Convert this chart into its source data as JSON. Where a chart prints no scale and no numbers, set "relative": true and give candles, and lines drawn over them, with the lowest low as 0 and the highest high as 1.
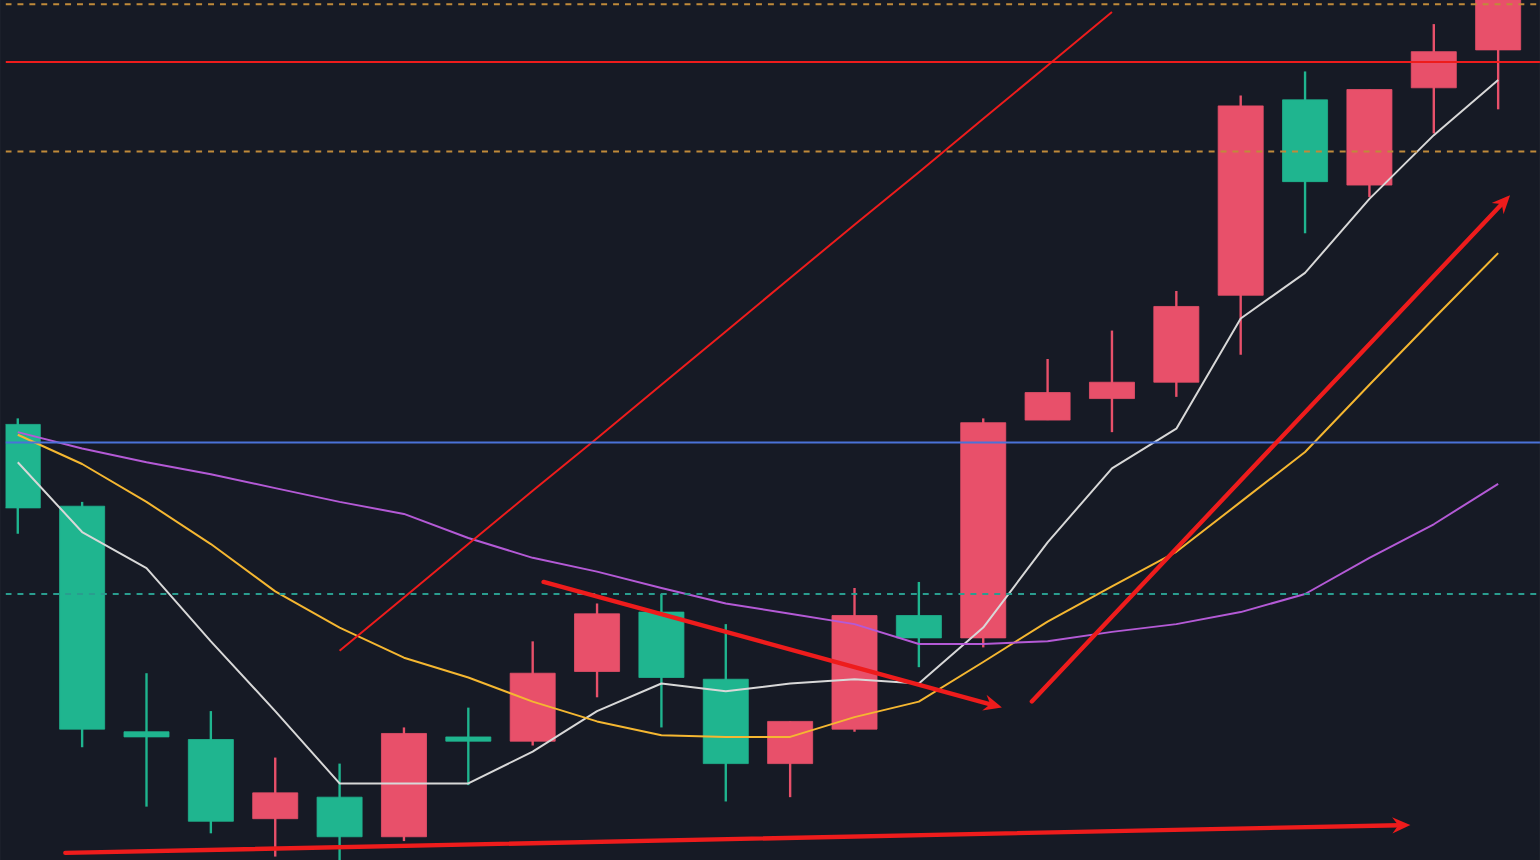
{
  "chart_data": {
    "type": "candlestick",
    "relative": true,
    "categories": [
      null,
      null,
      null,
      null,
      null,
      null,
      null,
      null,
      null,
      null,
      null,
      null,
      null,
      null,
      null,
      null,
      null,
      null,
      null,
      null,
      null,
      null,
      null,
      null
    ],
    "ohlc": [
      [
        0.507,
        0.514,
        0.38,
        0.41
      ],
      [
        0.412,
        0.417,
        0.132,
        0.153
      ],
      [
        0.15,
        0.218,
        0.063,
        0.144
      ],
      [
        0.141,
        0.174,
        0.032,
        0.046
      ],
      [
        0.049,
        0.12,
        0.005,
        0.079
      ],
      [
        0.074,
        0.113,
        0,
        0.028
      ],
      [
        0.028,
        0.155,
        0.023,
        0.148
      ],
      [
        0.144,
        0.178,
        0.088,
        0.139
      ],
      [
        0.139,
        0.255,
        0.134,
        0.218
      ],
      [
        0.22,
        0.299,
        0.19,
        0.287
      ],
      [
        0.289,
        0.31,
        0.155,
        0.213
      ],
      [
        0.211,
        0.275,
        0.069,
        0.113
      ],
      [
        0.113,
        0.162,
        0.074,
        0.162
      ],
      [
        0.153,
        0.317,
        0.15,
        0.285
      ],
      [
        0.285,
        0.324,
        0.225,
        0.259
      ],
      [
        0.259,
        0.514,
        0.248,
        0.509
      ],
      [
        0.512,
        0.583,
        0.512,
        0.544
      ],
      [
        0.537,
        0.616,
        0.498,
        0.556
      ],
      [
        0.556,
        0.662,
        0.539,
        0.644
      ],
      [
        0.657,
        0.889,
        0.588,
        0.877
      ],
      [
        0.884,
        0.917,
        0.729,
        0.789
      ],
      [
        0.785,
        0.896,
        0.771,
        0.896
      ],
      [
        0.898,
        0.972,
        0.845,
        0.94
      ],
      [
        0.942,
        1,
        0.873,
        1
      ]
    ],
    "colors": [
      "#1fb58f",
      "#1fb58f",
      "#1fb58f",
      "#1fb58f",
      "#e8506a",
      "#1fb58f",
      "#e8506a",
      "#1fb58f",
      "#e8506a",
      "#e8506a",
      "#1fb58f",
      "#1fb58f",
      "#e8506a",
      "#e8506a",
      "#1fb58f",
      "#e8506a",
      "#e8506a",
      "#e8506a",
      "#e8506a",
      "#e8506a",
      "#1fb58f",
      "#e8506a",
      "#e8506a",
      "#e8506a"
    ],
    "series": [
      {
        "type": "line",
        "color": "#d8d8d8",
        "values": [
          0.463,
          0.382,
          0.34,
          0.255,
          0.174,
          0.09,
          0.09,
          0.09,
          0.127,
          0.174,
          0.206,
          0.197,
          0.206,
          0.211,
          0.206,
          0.271,
          0.37,
          0.456,
          0.502,
          0.63,
          0.683,
          0.769,
          0.843,
          0.907
        ]
      },
      {
        "type": "line",
        "color": "#f5b731",
        "values": [
          0.495,
          0.461,
          0.417,
          0.368,
          0.313,
          0.271,
          0.236,
          0.213,
          0.185,
          0.162,
          0.146,
          0.144,
          0.144,
          0.167,
          0.185,
          0.231,
          0.278,
          0.319,
          0.359,
          0.417,
          0.475,
          0.553,
          0.63,
          0.706
        ]
      },
      {
        "type": "line",
        "color": "#b45ad6",
        "values": [
          0.498,
          0.479,
          0.463,
          0.449,
          0.433,
          0.417,
          0.403,
          0.375,
          0.352,
          0.336,
          0.317,
          0.299,
          0.287,
          0.275,
          0.252,
          0.252,
          0.255,
          0.266,
          0.275,
          0.289,
          0.31,
          0.352,
          0.391,
          0.438
        ]
      },
      {
        "type": "line",
        "color": "#ee1c1c",
        "values": [
          null,
          null,
          null,
          null,
          null,
          0.244,
          0.306,
          0.368,
          0.43,
          0.491,
          0.553,
          0.615,
          0.677,
          0.739,
          0.8,
          0.862,
          0.924,
          0.986,
          null,
          null,
          null,
          null,
          null,
          null
        ]
      }
    ],
    "ref_lines": [
      {
        "axis": "y",
        "value": 0.486,
        "color": "#4a72d8",
        "line_style": "solid"
      },
      {
        "axis": "y",
        "value": 0.31,
        "color": "#2a9d8f",
        "line_style": "dashed"
      },
      {
        "axis": "y",
        "value": 0.824,
        "color": "#c08a3a",
        "line_style": "dashed"
      },
      {
        "axis": "y",
        "value": 0.995,
        "color": "#c08a3a",
        "line_style": "dashed"
      },
      {
        "axis": "y",
        "value": 0.928,
        "color": "#ee1c1c",
        "line_style": "solid"
      }
    ]
  }
}
